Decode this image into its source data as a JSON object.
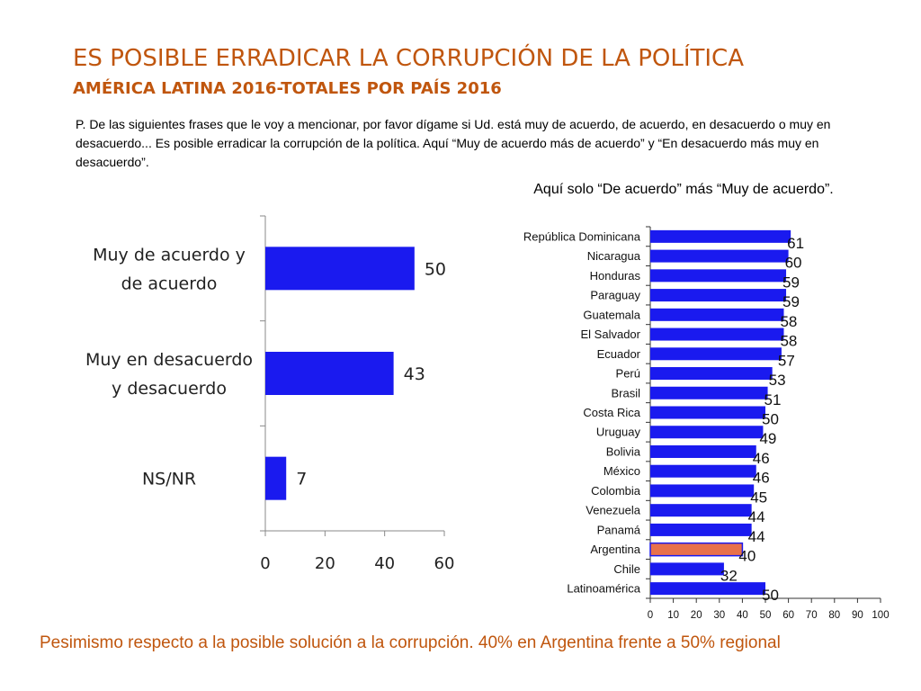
{
  "header": {
    "title": "ES POSIBLE ERRADICAR LA CORRUPCIÓN DE LA  POLÍTICA",
    "subtitle": "AMÉRICA LATINA 2016-TOTALES POR PAÍS 2016"
  },
  "question": "P. De las siguientes frases que le voy a mencionar, por favor dígame si Ud. está muy de acuerdo, de acuerdo, en desacuerdo o muy en desacuerdo... Es posible erradicar la corrupción de la política. Aquí “Muy de acuerdo más de acuerdo” y “En desacuerdo más muy en desacuerdo”.",
  "chart_note": "Aquí solo “De acuerdo” más “Muy de acuerdo”.",
  "footer": "Pesimismo respecto a la posible solución a la corrupción. 40% en Argentina frente a 50% regional",
  "colors": {
    "bar": "#1a1aef",
    "highlight": "#e8714a",
    "accent": "#c0560e"
  },
  "chart_data": [
    {
      "type": "bar",
      "orientation": "horizontal",
      "categories": [
        [
          "Muy de acuerdo y",
          "de acuerdo"
        ],
        [
          "Muy en desacuerdo",
          "y desacuerdo"
        ],
        [
          "NS/NR"
        ]
      ],
      "values": [
        50,
        43,
        7
      ],
      "xlim": [
        0,
        60
      ],
      "xticks": [
        "0",
        "20",
        "40",
        "60"
      ],
      "grid": false,
      "legend": "none"
    },
    {
      "type": "bar",
      "orientation": "horizontal",
      "title": "Aquí solo “De acuerdo” más “Muy de acuerdo”.",
      "categories": [
        "República Dominicana",
        "Nicaragua",
        "Honduras",
        "Paraguay",
        "Guatemala",
        "El Salvador",
        "Ecuador",
        "Perú",
        "Brasil",
        "Costa Rica",
        "Uruguay",
        "Bolivia",
        "México",
        "Colombia",
        "Venezuela",
        "Panamá",
        "Argentina",
        "Chile",
        "Latinoamérica"
      ],
      "values": [
        61,
        60,
        59,
        59,
        58,
        58,
        57,
        53,
        51,
        50,
        49,
        46,
        46,
        45,
        44,
        44,
        40,
        32,
        50
      ],
      "highlight": "Argentina",
      "xlim": [
        0,
        100
      ],
      "xticks": [
        "0",
        "10",
        "20",
        "30",
        "40",
        "50",
        "60",
        "70",
        "80",
        "90",
        "100"
      ],
      "grid": false,
      "legend": "none"
    }
  ]
}
